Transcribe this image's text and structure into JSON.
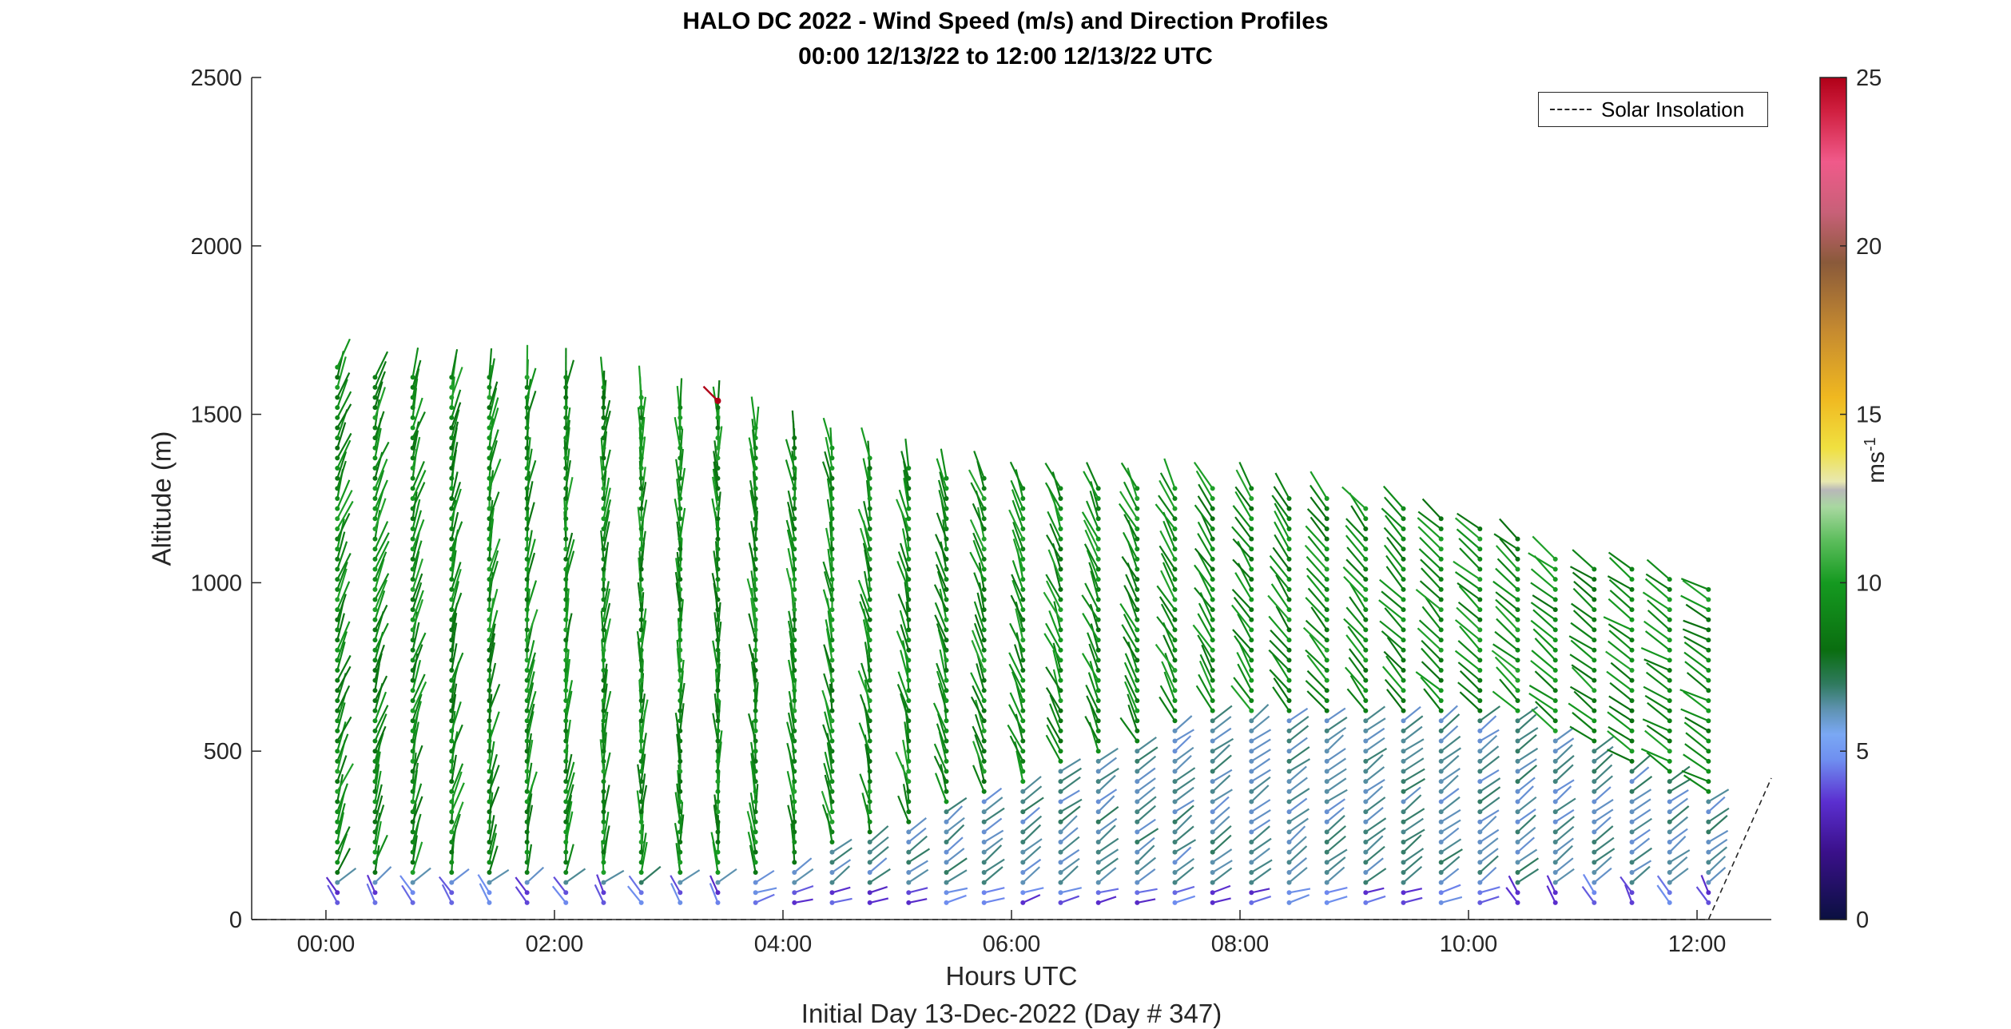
{
  "chart_data": {
    "type": "wind_barb_profile",
    "title": "HALO DC 2022 - Wind Speed (m/s) and Direction Profiles",
    "subtitle": "00:00 12/13/22 to 12:00 12/13/22  UTC",
    "xlabel": "Hours UTC",
    "xlabel2": "Initial Day 13-Dec-2022 (Day # 347)",
    "ylabel": "Altitude (m)",
    "xlim": [
      -0.65,
      12.65
    ],
    "ylim": [
      0,
      2500
    ],
    "x_ticks": [
      0,
      2,
      4,
      6,
      8,
      10,
      12
    ],
    "x_tick_labels": [
      "00:00",
      "02:00",
      "04:00",
      "06:00",
      "08:00",
      "10:00",
      "12:00"
    ],
    "y_ticks": [
      0,
      500,
      1000,
      1500,
      2000,
      2500
    ],
    "y_tick_labels": [
      "0",
      "500",
      "1000",
      "1500",
      "2000",
      "2500"
    ],
    "colorbar": {
      "label_base": "ms",
      "label_exp": "-1",
      "range": [
        0,
        25
      ],
      "ticks": [
        0,
        5,
        10,
        15,
        20,
        25
      ],
      "tick_labels": [
        "0",
        "5",
        "10",
        "15",
        "20",
        "25"
      ]
    },
    "legend": {
      "position": "top-right",
      "entries": [
        "Solar Insolation"
      ]
    },
    "solar_insolation": [
      [
        -0.65,
        0
      ],
      [
        12.1,
        0
      ],
      [
        12.65,
        420
      ]
    ],
    "profile_times": [
      0.1,
      0.43,
      0.76,
      1.1,
      1.43,
      1.76,
      2.1,
      2.43,
      2.76,
      3.1,
      3.43,
      3.76,
      4.1,
      4.43,
      4.76,
      5.1,
      5.43,
      5.76,
      6.1,
      6.43,
      6.76,
      7.1,
      7.43,
      7.76,
      8.1,
      8.43,
      8.76,
      9.1,
      9.43,
      9.76,
      10.1,
      10.43,
      10.76,
      11.1,
      11.43,
      11.76,
      12.1
    ],
    "profile_tops_m": [
      1650,
      1620,
      1620,
      1620,
      1620,
      1620,
      1620,
      1590,
      1560,
      1540,
      1540,
      1480,
      1440,
      1400,
      1380,
      1340,
      1330,
      1320,
      1300,
      1300,
      1300,
      1300,
      1300,
      1300,
      1280,
      1270,
      1260,
      1240,
      1220,
      1200,
      1160,
      1130,
      1090,
      1060,
      1040,
      1010,
      980
    ],
    "level_spacing_m": 30,
    "first_level_m": 50,
    "note_values": "Each profile: wind vectors every ~30 m from ~50 m to top; speeds ~3-5 m/s near surface, ~6-10 m/s aloft; direction mostly from N/NW aloft and NE/SW near surface"
  }
}
